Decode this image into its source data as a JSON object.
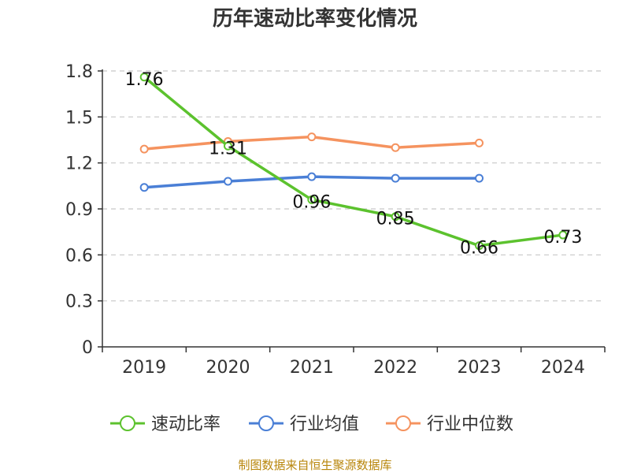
{
  "chart_data": {
    "type": "line",
    "title": "历年速动比率变化情况",
    "categories": [
      "2019",
      "2020",
      "2021",
      "2022",
      "2023",
      "2024"
    ],
    "ylim": [
      0,
      1.8
    ],
    "yticks": [
      "0",
      "0.3",
      "0.6",
      "0.9",
      "1.2",
      "1.5",
      "1.8"
    ],
    "grid": true,
    "legend_position": "bottom",
    "series": [
      {
        "name": "速动比率",
        "color": "#5cc22e",
        "values": [
          1.76,
          1.31,
          0.96,
          0.85,
          0.66,
          0.73
        ],
        "labels": [
          "1.76",
          "1.31",
          "0.96",
          "0.85",
          "0.66",
          "0.73"
        ]
      },
      {
        "name": "行业均值",
        "color": "#4a7fd6",
        "values": [
          1.04,
          1.08,
          1.11,
          1.1,
          1.1,
          null
        ]
      },
      {
        "name": "行业中位数",
        "color": "#f5935f",
        "values": [
          1.29,
          1.34,
          1.37,
          1.3,
          1.33,
          null
        ]
      }
    ]
  },
  "footer": {
    "source": "制图数据来自恒生聚源数据库"
  }
}
